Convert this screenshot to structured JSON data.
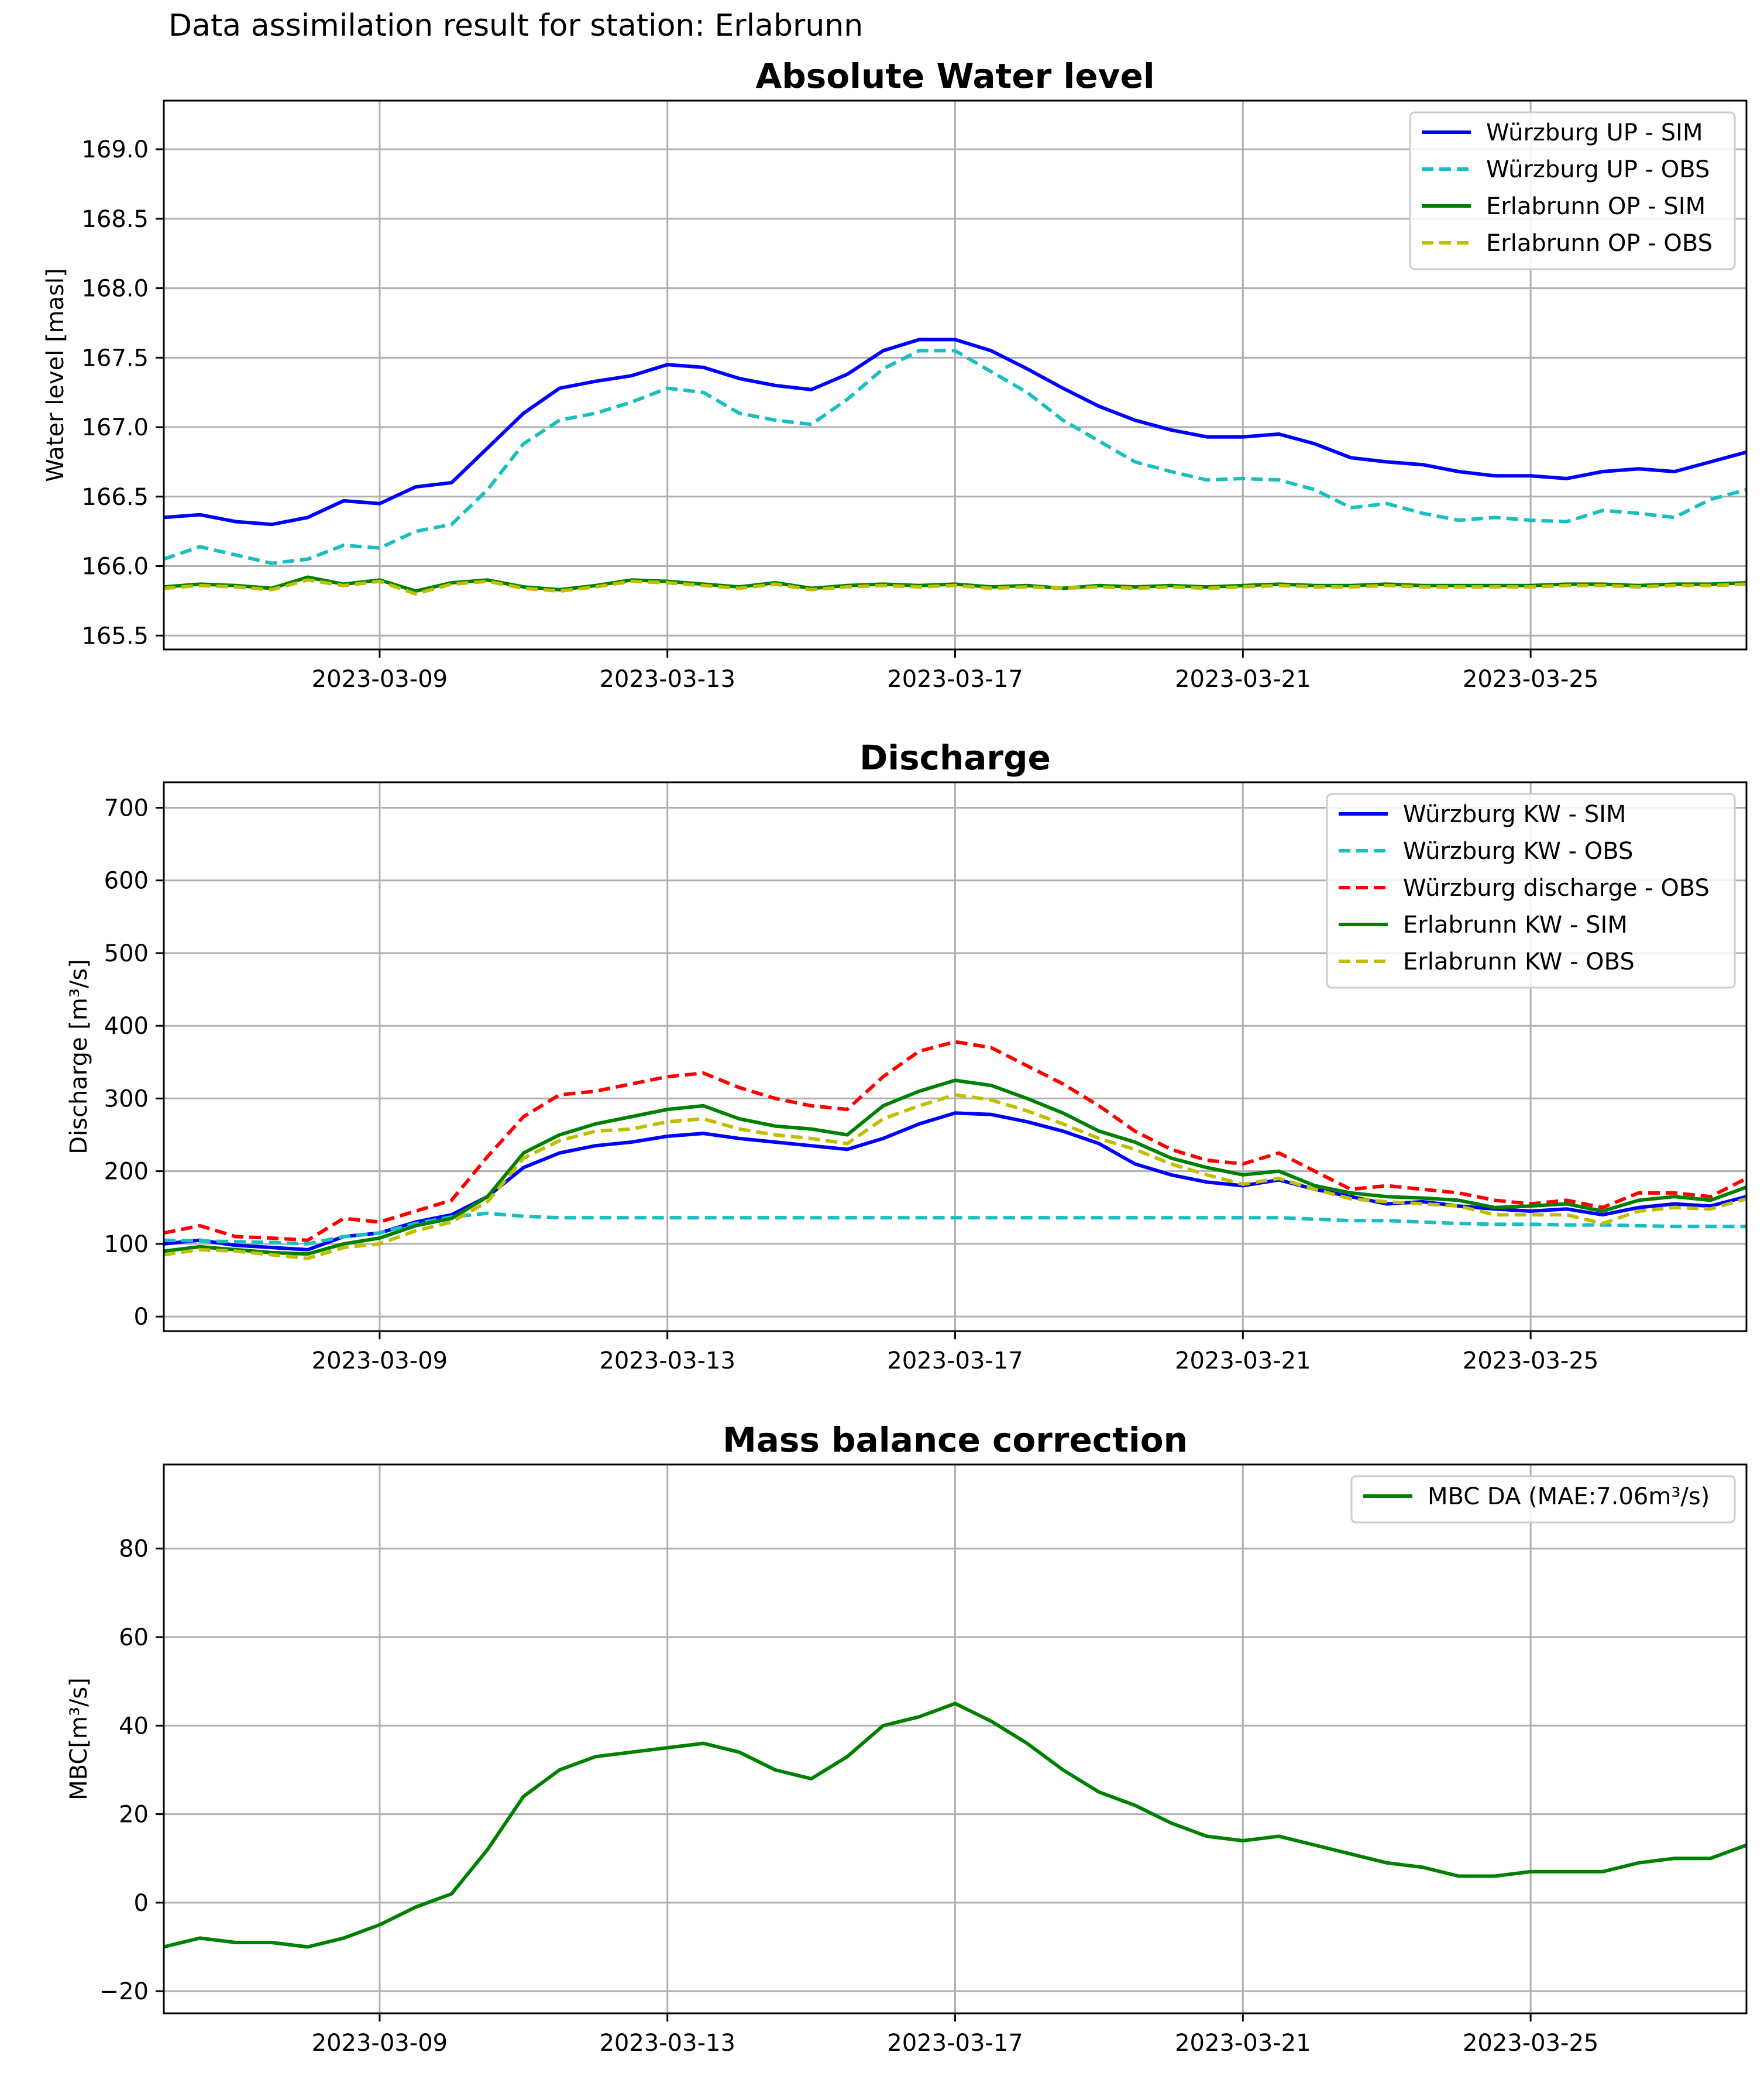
{
  "figure": {
    "suptitle": "Data assimilation result for station: Erlabrunn"
  },
  "x_ticks": [
    "2023-03-09",
    "2023-03-13",
    "2023-03-17",
    "2023-03-21",
    "2023-03-25"
  ],
  "chart_data": [
    {
      "type": "line",
      "title": "Absolute Water level",
      "xlabel": "",
      "ylabel": "Water level [masl]",
      "x_range": [
        "2023-03-06",
        "2023-03-28"
      ],
      "ylim": [
        165.4,
        169.35
      ],
      "yticks": [
        165.5,
        166.0,
        166.5,
        167.0,
        167.5,
        168.0,
        168.5,
        169.0
      ],
      "grid": true,
      "legend_position": "top-right",
      "x": [
        "2023-03-06",
        "2023-03-06T12:00",
        "2023-03-07",
        "2023-03-07T12:00",
        "2023-03-08",
        "2023-03-08T12:00",
        "2023-03-09",
        "2023-03-09T12:00",
        "2023-03-10",
        "2023-03-10T12:00",
        "2023-03-11",
        "2023-03-11T12:00",
        "2023-03-12",
        "2023-03-12T12:00",
        "2023-03-13",
        "2023-03-13T12:00",
        "2023-03-14",
        "2023-03-14T12:00",
        "2023-03-15",
        "2023-03-15T12:00",
        "2023-03-16",
        "2023-03-16T12:00",
        "2023-03-17",
        "2023-03-17T12:00",
        "2023-03-18",
        "2023-03-18T12:00",
        "2023-03-19",
        "2023-03-19T12:00",
        "2023-03-20",
        "2023-03-20T12:00",
        "2023-03-21",
        "2023-03-21T12:00",
        "2023-03-22",
        "2023-03-22T12:00",
        "2023-03-23",
        "2023-03-23T12:00",
        "2023-03-24",
        "2023-03-24T12:00",
        "2023-03-25",
        "2023-03-25T12:00",
        "2023-03-26",
        "2023-03-26T12:00",
        "2023-03-27",
        "2023-03-27T12:00",
        "2023-03-28"
      ],
      "series": [
        {
          "name": "Würzburg UP - SIM",
          "color": "#0000ff",
          "dash": "solid",
          "values": [
            166.35,
            166.37,
            166.32,
            166.3,
            166.35,
            166.47,
            166.45,
            166.57,
            166.6,
            166.85,
            167.1,
            167.28,
            167.33,
            167.37,
            167.45,
            167.43,
            167.35,
            167.3,
            167.27,
            167.38,
            167.55,
            167.63,
            167.63,
            167.55,
            167.42,
            167.28,
            167.15,
            167.05,
            166.98,
            166.93,
            166.93,
            166.95,
            166.88,
            166.78,
            166.75,
            166.73,
            166.68,
            166.65,
            166.65,
            166.63,
            166.68,
            166.7,
            166.68,
            166.75,
            166.82
          ]
        },
        {
          "name": "Würzburg UP - OBS",
          "color": "#17bfbf",
          "dash": "dashed",
          "values": [
            166.05,
            166.14,
            166.08,
            166.02,
            166.05,
            166.15,
            166.13,
            166.25,
            166.3,
            166.55,
            166.88,
            167.05,
            167.1,
            167.18,
            167.28,
            167.25,
            167.1,
            167.05,
            167.02,
            167.2,
            167.42,
            167.55,
            167.55,
            167.4,
            167.25,
            167.05,
            166.9,
            166.75,
            166.68,
            166.62,
            166.63,
            166.62,
            166.55,
            166.42,
            166.45,
            166.38,
            166.33,
            166.35,
            166.33,
            166.32,
            166.4,
            166.38,
            166.35,
            166.48,
            166.55
          ]
        },
        {
          "name": "Erlabrunn OP - SIM",
          "color": "#008000",
          "dash": "solid",
          "values": [
            165.85,
            165.87,
            165.86,
            165.84,
            165.92,
            165.87,
            165.9,
            165.82,
            165.88,
            165.9,
            165.85,
            165.83,
            165.86,
            165.9,
            165.89,
            165.87,
            165.85,
            165.88,
            165.84,
            165.86,
            165.87,
            165.86,
            165.87,
            165.85,
            165.86,
            165.84,
            165.86,
            165.85,
            165.86,
            165.85,
            165.86,
            165.87,
            165.86,
            165.86,
            165.87,
            165.86,
            165.86,
            165.86,
            165.86,
            165.87,
            165.87,
            165.86,
            165.87,
            165.87,
            165.88
          ]
        },
        {
          "name": "Erlabrunn OP - OBS",
          "color": "#bfbf00",
          "dash": "dashed",
          "values": [
            165.84,
            165.86,
            165.85,
            165.83,
            165.9,
            165.86,
            165.89,
            165.8,
            165.87,
            165.89,
            165.84,
            165.82,
            165.85,
            165.89,
            165.88,
            165.86,
            165.84,
            165.87,
            165.83,
            165.85,
            165.86,
            165.85,
            165.86,
            165.84,
            165.85,
            165.84,
            165.85,
            165.84,
            165.85,
            165.84,
            165.85,
            165.86,
            165.85,
            165.85,
            165.86,
            165.85,
            165.85,
            165.85,
            165.85,
            165.86,
            165.86,
            165.85,
            165.86,
            165.86,
            165.87
          ]
        }
      ]
    },
    {
      "type": "line",
      "title": "Discharge",
      "xlabel": "",
      "ylabel": "Discharge [m³/s]",
      "x_range": [
        "2023-03-06",
        "2023-03-28"
      ],
      "ylim": [
        -20,
        735
      ],
      "yticks": [
        0,
        100,
        200,
        300,
        400,
        500,
        600,
        700
      ],
      "grid": true,
      "legend_position": "top-right",
      "x": [
        "2023-03-06",
        "2023-03-06T12:00",
        "2023-03-07",
        "2023-03-07T12:00",
        "2023-03-08",
        "2023-03-08T12:00",
        "2023-03-09",
        "2023-03-09T12:00",
        "2023-03-10",
        "2023-03-10T12:00",
        "2023-03-11",
        "2023-03-11T12:00",
        "2023-03-12",
        "2023-03-12T12:00",
        "2023-03-13",
        "2023-03-13T12:00",
        "2023-03-14",
        "2023-03-14T12:00",
        "2023-03-15",
        "2023-03-15T12:00",
        "2023-03-16",
        "2023-03-16T12:00",
        "2023-03-17",
        "2023-03-17T12:00",
        "2023-03-18",
        "2023-03-18T12:00",
        "2023-03-19",
        "2023-03-19T12:00",
        "2023-03-20",
        "2023-03-20T12:00",
        "2023-03-21",
        "2023-03-21T12:00",
        "2023-03-22",
        "2023-03-22T12:00",
        "2023-03-23",
        "2023-03-23T12:00",
        "2023-03-24",
        "2023-03-24T12:00",
        "2023-03-25",
        "2023-03-25T12:00",
        "2023-03-26",
        "2023-03-26T12:00",
        "2023-03-27",
        "2023-03-27T12:00",
        "2023-03-28"
      ],
      "series": [
        {
          "name": "Würzburg KW - SIM",
          "color": "#0000ff",
          "dash": "solid",
          "values": [
            100,
            105,
            98,
            95,
            92,
            110,
            115,
            130,
            140,
            165,
            205,
            225,
            235,
            240,
            248,
            252,
            245,
            240,
            235,
            230,
            245,
            265,
            280,
            278,
            268,
            255,
            238,
            210,
            195,
            185,
            180,
            188,
            175,
            165,
            155,
            158,
            152,
            148,
            145,
            148,
            140,
            150,
            155,
            152,
            165
          ]
        },
        {
          "name": "Würzburg KW - OBS",
          "color": "#17bfbf",
          "dash": "dashed",
          "values": [
            105,
            104,
            103,
            102,
            100,
            110,
            115,
            128,
            137,
            142,
            138,
            136,
            136,
            136,
            136,
            136,
            136,
            136,
            136,
            136,
            136,
            136,
            136,
            136,
            136,
            136,
            136,
            136,
            136,
            136,
            136,
            136,
            134,
            132,
            132,
            130,
            128,
            127,
            127,
            126,
            126,
            125,
            124,
            124,
            124
          ]
        },
        {
          "name": "Würzburg discharge - OBS",
          "color": "#ff0000",
          "dash": "dashed",
          "values": [
            115,
            125,
            110,
            108,
            105,
            135,
            130,
            145,
            160,
            220,
            275,
            305,
            310,
            320,
            330,
            335,
            315,
            300,
            290,
            285,
            330,
            365,
            378,
            370,
            345,
            320,
            290,
            255,
            230,
            215,
            210,
            225,
            200,
            175,
            180,
            175,
            170,
            160,
            155,
            160,
            150,
            170,
            170,
            165,
            190
          ]
        },
        {
          "name": "Erlabrunn KW - SIM",
          "color": "#008000",
          "dash": "solid",
          "values": [
            90,
            96,
            92,
            88,
            86,
            100,
            108,
            125,
            135,
            165,
            225,
            250,
            265,
            275,
            285,
            290,
            272,
            262,
            258,
            250,
            290,
            310,
            325,
            318,
            300,
            280,
            255,
            240,
            218,
            205,
            195,
            200,
            180,
            170,
            165,
            163,
            160,
            150,
            152,
            155,
            145,
            160,
            165,
            160,
            178
          ]
        },
        {
          "name": "Erlabrunn KW - OBS",
          "color": "#bfbf00",
          "dash": "dashed",
          "values": [
            85,
            92,
            90,
            85,
            80,
            95,
            100,
            118,
            130,
            158,
            218,
            242,
            255,
            258,
            268,
            272,
            258,
            250,
            245,
            238,
            272,
            290,
            305,
            298,
            283,
            265,
            245,
            230,
            210,
            195,
            182,
            190,
            175,
            162,
            158,
            155,
            152,
            140,
            140,
            140,
            128,
            145,
            150,
            148,
            162
          ]
        }
      ]
    },
    {
      "type": "line",
      "title": "Mass balance correction",
      "xlabel": "",
      "ylabel": "MBC[m³/s]",
      "x_range": [
        "2023-03-06",
        "2023-03-28"
      ],
      "ylim": [
        -25,
        99
      ],
      "yticks": [
        -20,
        0,
        20,
        40,
        60,
        80
      ],
      "grid": true,
      "legend_position": "top-right",
      "x": [
        "2023-03-06",
        "2023-03-06T12:00",
        "2023-03-07",
        "2023-03-07T12:00",
        "2023-03-08",
        "2023-03-08T12:00",
        "2023-03-09",
        "2023-03-09T12:00",
        "2023-03-10",
        "2023-03-10T12:00",
        "2023-03-11",
        "2023-03-11T12:00",
        "2023-03-12",
        "2023-03-12T12:00",
        "2023-03-13",
        "2023-03-13T12:00",
        "2023-03-14",
        "2023-03-14T12:00",
        "2023-03-15",
        "2023-03-15T12:00",
        "2023-03-16",
        "2023-03-16T12:00",
        "2023-03-17",
        "2023-03-17T12:00",
        "2023-03-18",
        "2023-03-18T12:00",
        "2023-03-19",
        "2023-03-19T12:00",
        "2023-03-20",
        "2023-03-20T12:00",
        "2023-03-21",
        "2023-03-21T12:00",
        "2023-03-22",
        "2023-03-22T12:00",
        "2023-03-23",
        "2023-03-23T12:00",
        "2023-03-24",
        "2023-03-24T12:00",
        "2023-03-25",
        "2023-03-25T12:00",
        "2023-03-26",
        "2023-03-26T12:00",
        "2023-03-27",
        "2023-03-27T12:00",
        "2023-03-28"
      ],
      "series": [
        {
          "name": "MBC DA (MAE:7.06m³/s)",
          "color": "#008000",
          "dash": "solid",
          "values": [
            -10,
            -8,
            -9,
            -9,
            -10,
            -8,
            -5,
            -1,
            2,
            12,
            24,
            30,
            33,
            34,
            35,
            36,
            34,
            30,
            28,
            33,
            40,
            42,
            45,
            41,
            36,
            30,
            25,
            22,
            18,
            15,
            14,
            15,
            13,
            11,
            9,
            8,
            6,
            6,
            7,
            7,
            7,
            9,
            10,
            10,
            13
          ]
        }
      ]
    }
  ]
}
